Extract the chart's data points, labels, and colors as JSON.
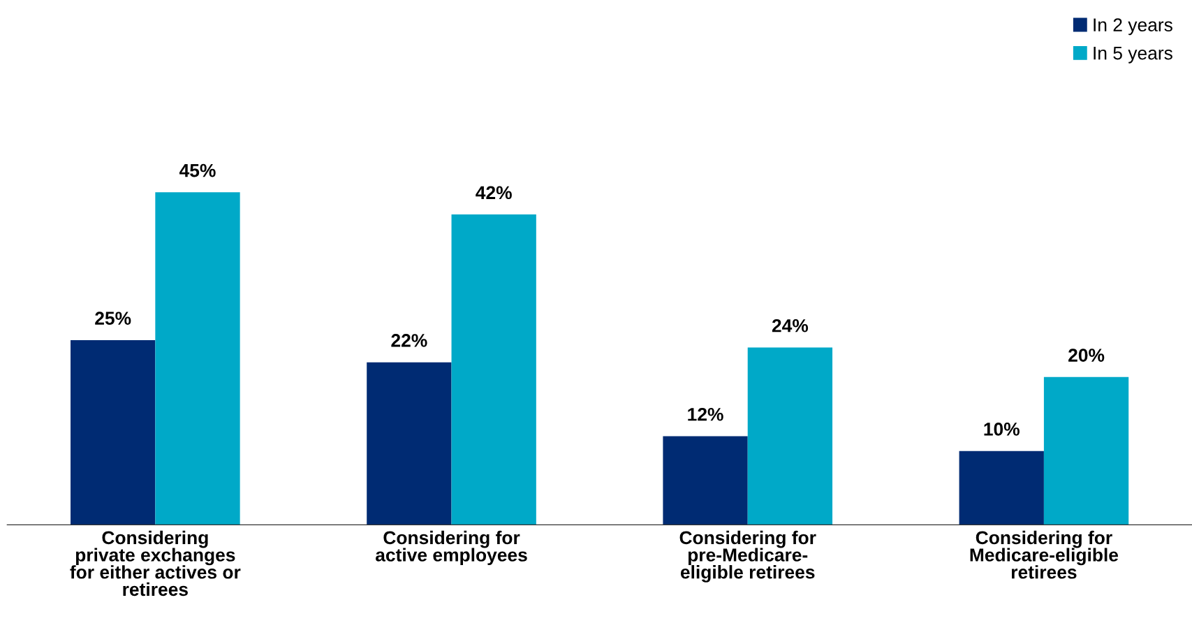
{
  "chart_data": {
    "type": "bar",
    "categories": [
      "Considering\nprivate exchanges\nfor either actives or\nretirees",
      "Considering for\nactive employees",
      "Considering for\npre-Medicare-\neligible retirees",
      "Considering for\nMedicare-eligible\nretirees"
    ],
    "series": [
      {
        "name": "In 2 years",
        "color": "#002b73",
        "values": [
          25,
          22,
          12,
          10
        ],
        "value_labels": [
          "25%",
          "22%",
          "12%",
          "10%"
        ]
      },
      {
        "name": "In 5 years",
        "color": "#00a9c8",
        "values": [
          45,
          42,
          24,
          20
        ],
        "value_labels": [
          "45%",
          "42%",
          "24%",
          "20%"
        ]
      }
    ],
    "legend": "top right"
  }
}
